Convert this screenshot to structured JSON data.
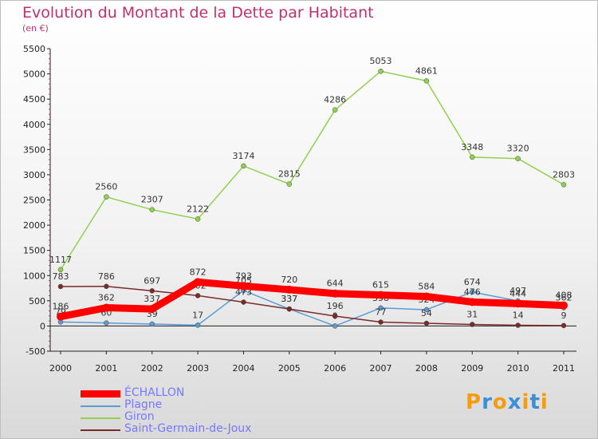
{
  "header": {
    "title": "Evolution du Montant de la Dette par Habitant",
    "unit": "(en €)"
  },
  "brand": {
    "logo_text": "Proxiti"
  },
  "chart_data": {
    "type": "line",
    "title": "Evolution du Montant de la Dette par Habitant",
    "subtitle": "(en €)",
    "x": [
      "2000",
      "2001",
      "2002",
      "2003",
      "2004",
      "2005",
      "2006",
      "2007",
      "2008",
      "2009",
      "2010",
      "2011"
    ],
    "ylim": [
      -500,
      5500
    ],
    "yticks": [
      -500,
      0,
      500,
      1000,
      1500,
      2000,
      2500,
      3000,
      3500,
      4000,
      4500,
      5000,
      5500
    ],
    "grid": false,
    "legend_position": "bottom-left",
    "series": [
      {
        "name": "ÉCHALLON",
        "color": "#ff0000",
        "values": [
          186,
          362,
          337,
          872,
          793,
          720,
          644,
          615,
          584,
          476,
          444,
          408
        ]
      },
      {
        "name": "Plagne",
        "color": "#5b9bd5",
        "values": [
          79,
          60,
          39,
          17,
          705,
          337,
          0,
          358,
          324,
          674,
          497,
          362
        ]
      },
      {
        "name": "Giron",
        "color": "#92d050",
        "values": [
          1117,
          2560,
          2307,
          2122,
          3174,
          2815,
          4286,
          5053,
          4861,
          3348,
          3320,
          2803
        ]
      },
      {
        "name": "Saint-Germain-de-Joux",
        "color": "#7b2a2a",
        "values": [
          783,
          786,
          697,
          602,
          473,
          337,
          196,
          77,
          54,
          31,
          14,
          9
        ]
      }
    ]
  }
}
